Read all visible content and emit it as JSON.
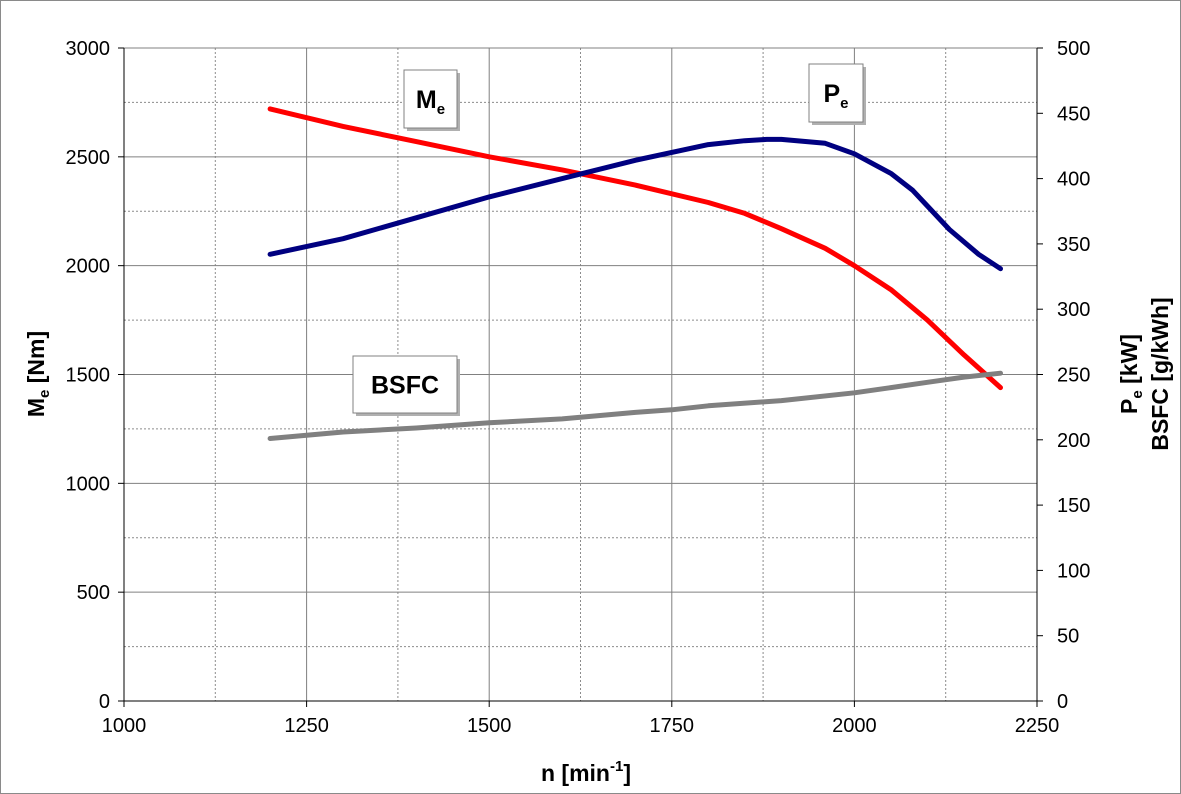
{
  "chart_data": {
    "type": "line",
    "x_axis": {
      "label_main": "n [min",
      "label_sup": "-1",
      "label_end": "]",
      "range": [
        1000,
        2250
      ],
      "ticks": [
        "1000",
        "1250",
        "1500",
        "1750",
        "2000",
        "2250"
      ],
      "minor_gridlines": [
        1125,
        1375,
        1625,
        1875,
        2125
      ]
    },
    "y_axis_left": {
      "label_main": "M",
      "label_sub": "e",
      "label_end": " [Nm]",
      "range": [
        0,
        3000
      ],
      "ticks": [
        "0",
        "500",
        "1000",
        "1500",
        "2000",
        "2500",
        "3000"
      ],
      "minor_gridlines": [
        250,
        750,
        1250,
        1750,
        2250,
        2750
      ]
    },
    "y_axis_right": {
      "label1_main": "P",
      "label1_sub": "e",
      "label1_end": " [kW]",
      "label2": "BSFC  [g/kWh]",
      "range": [
        0,
        500
      ],
      "ticks": [
        "0",
        "50",
        "100",
        "150",
        "200",
        "250",
        "300",
        "350",
        "400",
        "450",
        "500"
      ]
    },
    "grid": true,
    "series": [
      {
        "name": "M",
        "name_sub": "e",
        "axis": "left",
        "color": "#ff0000",
        "x": [
          1200,
          1300,
          1400,
          1500,
          1600,
          1700,
          1800,
          1850,
          1900,
          1960,
          2000,
          2050,
          2100,
          2150,
          2200
        ],
        "y": [
          2720,
          2640,
          2570,
          2500,
          2440,
          2370,
          2290,
          2240,
          2170,
          2080,
          2000,
          1890,
          1750,
          1590,
          1440
        ]
      },
      {
        "name": "P",
        "name_sub": "e",
        "axis": "right",
        "color": "#000080",
        "x": [
          1200,
          1300,
          1400,
          1500,
          1600,
          1700,
          1800,
          1850,
          1880,
          1900,
          1960,
          2000,
          2050,
          2080,
          2100,
          2130,
          2170,
          2200
        ],
        "y": [
          342,
          354,
          370,
          386,
          400,
          414,
          426,
          429,
          430,
          430,
          427,
          419,
          404,
          391,
          379,
          361,
          342,
          331
        ]
      },
      {
        "name": "BSFC",
        "axis": "right",
        "color": "#808080",
        "x": [
          1200,
          1300,
          1400,
          1500,
          1600,
          1700,
          1750,
          1800,
          1900,
          2000,
          2050,
          2100,
          2150,
          2200
        ],
        "y": [
          201,
          206,
          209,
          213,
          216,
          221,
          223,
          226,
          230,
          236,
          240,
          244,
          248,
          251
        ]
      }
    ],
    "annotations": [
      {
        "series": "M",
        "text": "M",
        "sub": "e"
      },
      {
        "series": "P",
        "text": "P",
        "sub": "e"
      },
      {
        "series": "BSFC",
        "text": "BSFC"
      }
    ]
  }
}
